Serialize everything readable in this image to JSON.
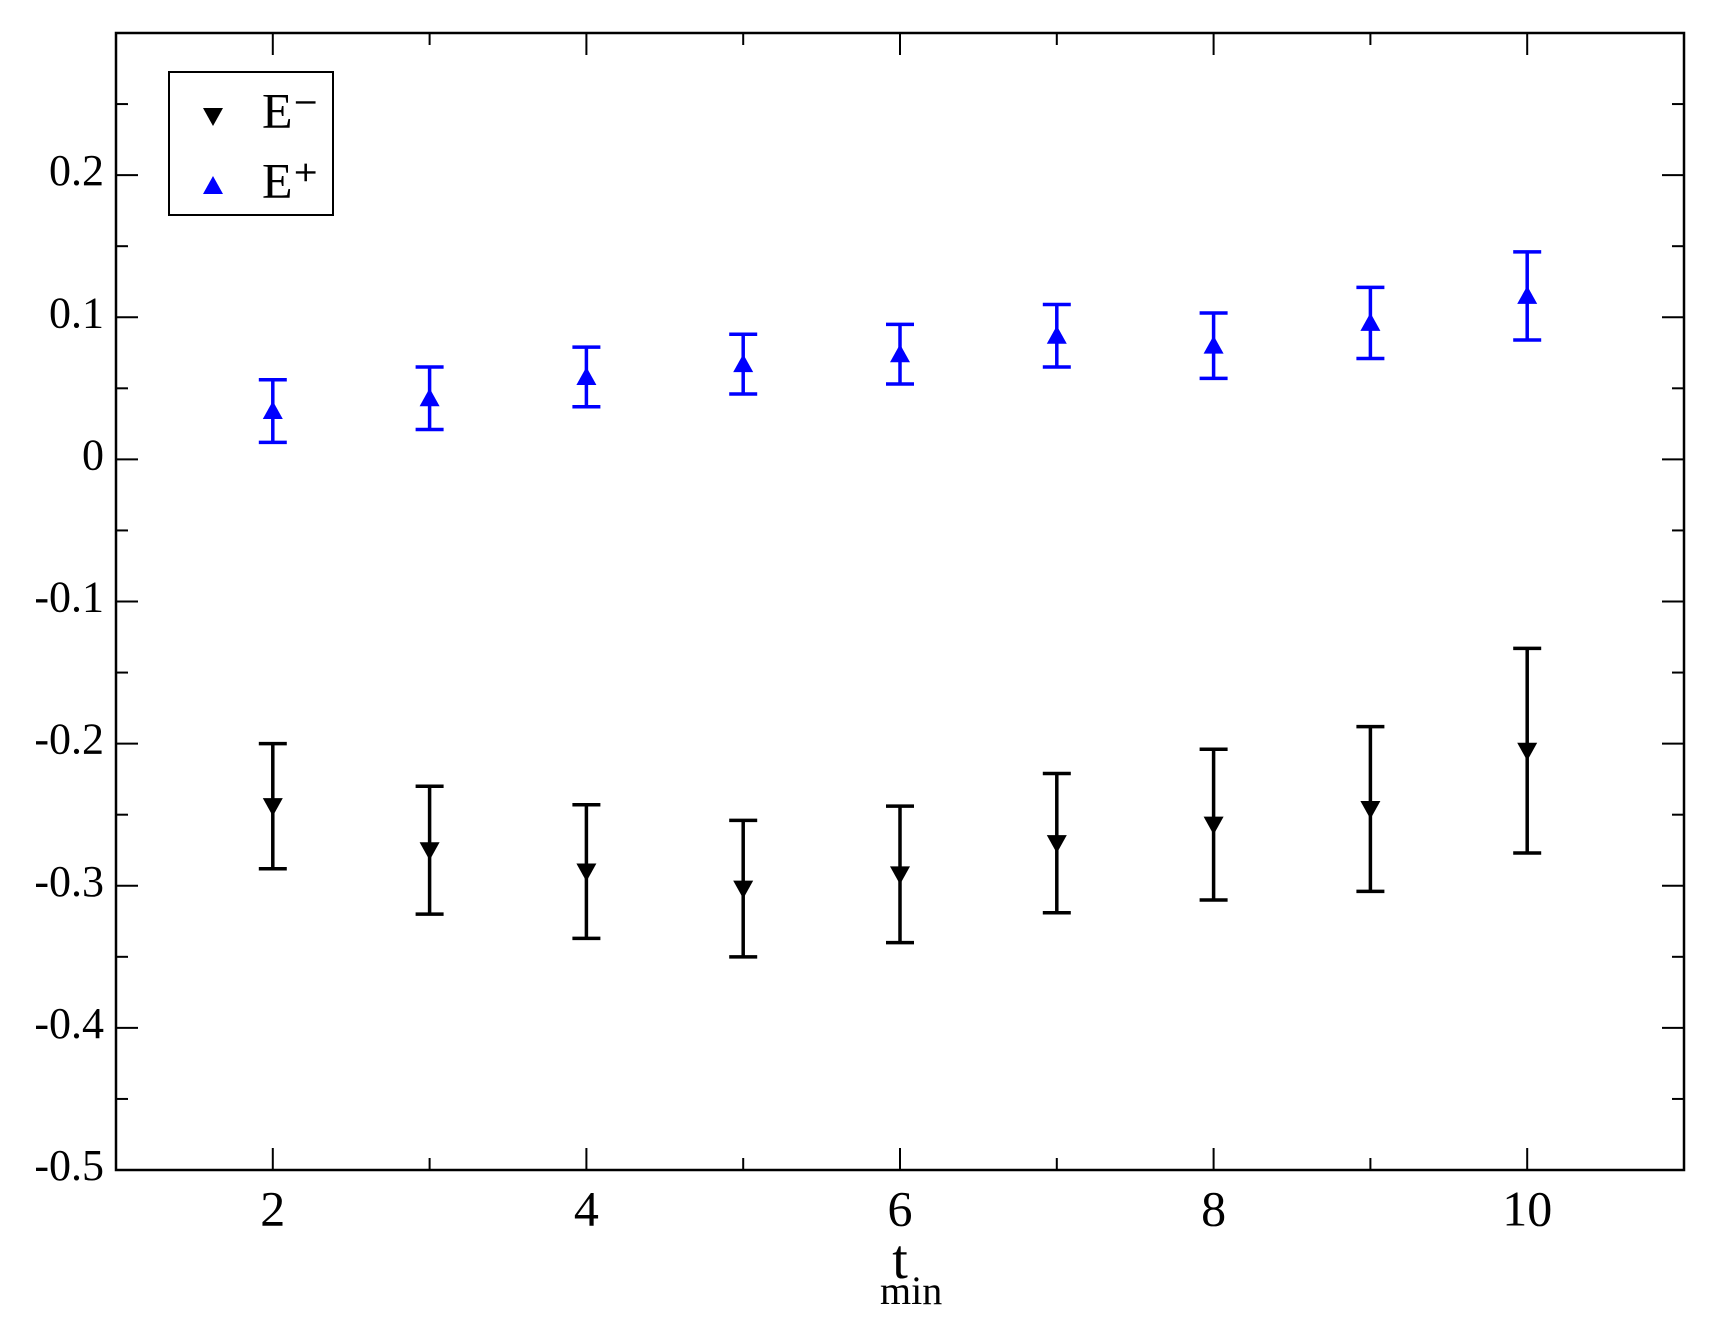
{
  "chart_data": {
    "type": "scatter",
    "xlabel": "t",
    "xlabel_subscript": "min",
    "x": [
      2,
      3,
      4,
      5,
      6,
      7,
      8,
      9,
      10
    ],
    "series": [
      {
        "name": "E⁻",
        "color": "#000000",
        "marker": "triangle-down",
        "values": [
          -0.244,
          -0.275,
          -0.29,
          -0.302,
          -0.292,
          -0.27,
          -0.257,
          -0.246,
          -0.205
        ],
        "errors": [
          0.044,
          0.045,
          0.047,
          0.048,
          0.048,
          0.049,
          0.053,
          0.058,
          0.072
        ]
      },
      {
        "name": "E⁺",
        "color": "#0000ff",
        "marker": "triangle-up",
        "values": [
          0.034,
          0.043,
          0.058,
          0.067,
          0.074,
          0.087,
          0.08,
          0.096,
          0.115
        ],
        "errors": [
          0.022,
          0.022,
          0.021,
          0.021,
          0.021,
          0.022,
          0.023,
          0.025,
          0.031
        ]
      }
    ],
    "xlim": [
      1,
      11
    ],
    "xticks": [
      2,
      4,
      6,
      8,
      10
    ],
    "xminorticks": [
      3,
      5,
      7,
      9
    ],
    "ylim": [
      -0.5,
      0.3
    ],
    "yticks": [
      -0.5,
      -0.4,
      -0.3,
      -0.2,
      -0.1,
      0,
      0.1,
      0.2
    ],
    "yminorticks": [
      -0.45,
      -0.35,
      -0.25,
      -0.15,
      -0.05,
      0.05,
      0.15,
      0.25
    ],
    "legend": "upper left",
    "grid": false
  }
}
